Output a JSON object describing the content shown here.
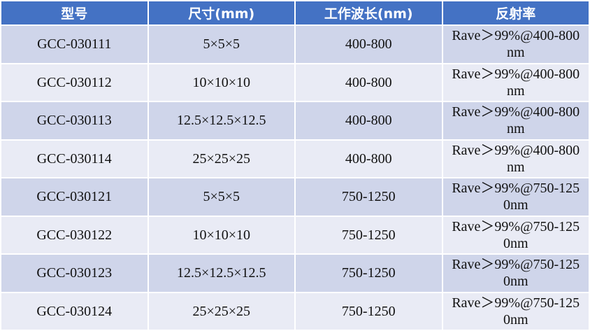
{
  "table": {
    "headers": [
      "型号",
      "尺寸(mm)",
      "工作波长(nm)",
      "反射率"
    ],
    "rows": [
      [
        "GCC-030111",
        "5×5×5",
        "400-800",
        "Rave＞99%@400-800nm"
      ],
      [
        "GCC-030112",
        "10×10×10",
        "400-800",
        "Rave＞99%@400-800nm"
      ],
      [
        "GCC-030113",
        "12.5×12.5×12.5",
        "400-800",
        "Rave＞99%@400-800nm"
      ],
      [
        "GCC-030114",
        "25×25×25",
        "400-800",
        "Rave＞99%@400-800nm"
      ],
      [
        "GCC-030121",
        "5×5×5",
        "750-1250",
        "Rave＞99%@750-1250nm"
      ],
      [
        "GCC-030122",
        "10×10×10",
        "750-1250",
        "Rave＞99%@750-1250nm"
      ],
      [
        "GCC-030123",
        "12.5×12.5×12.5",
        "750-1250",
        "Rave＞99%@750-1250nm"
      ],
      [
        "GCC-030124",
        "25×25×25",
        "750-1250",
        "Rave＞99%@750-1250nm"
      ]
    ]
  },
  "colors": {
    "header": "#4472C4",
    "row_odd": "#CFD5EA",
    "row_even": "#E9EBF5"
  }
}
